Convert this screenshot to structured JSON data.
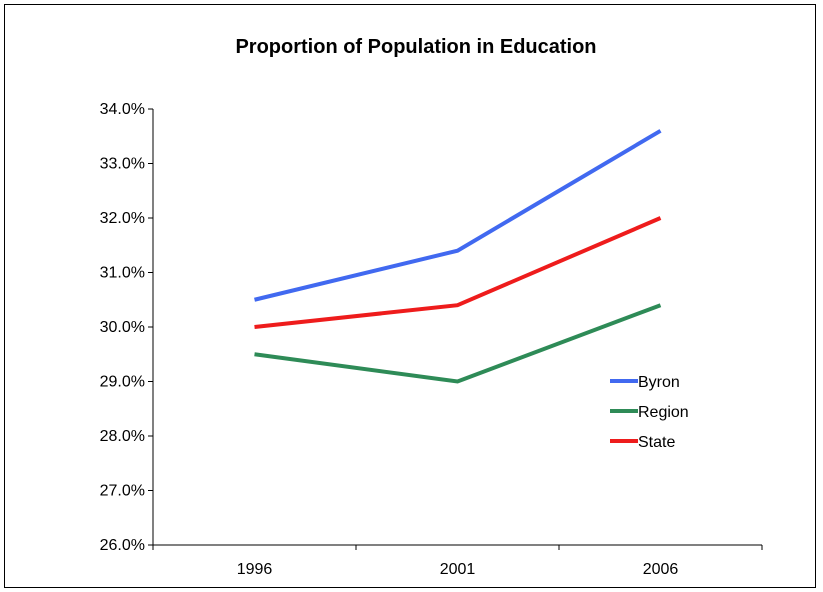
{
  "chart_data": {
    "type": "line",
    "title": "Proportion of Population in Education",
    "xlabel": "",
    "ylabel": "",
    "categories": [
      "1996",
      "2001",
      "2006"
    ],
    "ylim": [
      26.0,
      34.0
    ],
    "y_tick_values": [
      26,
      27,
      28,
      29,
      30,
      31,
      32,
      33,
      34
    ],
    "y_tick_labels": [
      "26.0%",
      "27.0%",
      "28.0%",
      "29.0%",
      "30.0%",
      "31.0%",
      "32.0%",
      "33.0%",
      "34.0%"
    ],
    "grid": false,
    "legend_position": "right",
    "series": [
      {
        "name": "Byron",
        "color": "#4169f0",
        "values": [
          30.5,
          31.4,
          33.6
        ]
      },
      {
        "name": "Region",
        "color": "#2e8b57",
        "values": [
          29.5,
          29.0,
          30.4
        ]
      },
      {
        "name": "State",
        "color": "#ee1c1c",
        "values": [
          30.0,
          30.4,
          32.0
        ]
      }
    ]
  }
}
